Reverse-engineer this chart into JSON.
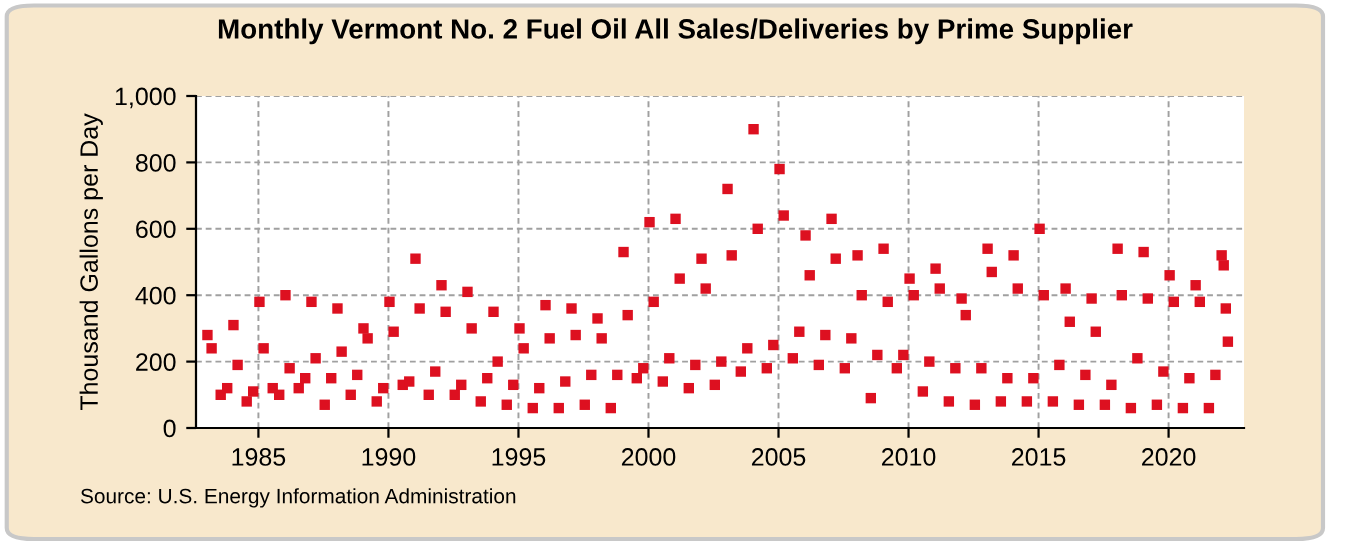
{
  "chart_data": {
    "type": "scatter",
    "title": "Monthly Vermont No. 2 Fuel Oil All Sales/Deliveries by Prime Supplier",
    "ylabel": "Thousand Gallons per Day",
    "annotations": [
      "Source: U.S. Energy Information Administration"
    ],
    "xlim": [
      1982.6,
      2022.9
    ],
    "xticks": [
      1985,
      1990,
      1995,
      2000,
      2005,
      2010,
      2015,
      2020
    ],
    "ylim": [
      0,
      1000
    ],
    "yticks": [
      0,
      200,
      400,
      600,
      800,
      {
        "value": 1000,
        "label": "1,000"
      }
    ],
    "grid": true,
    "marker": "square",
    "legend": false,
    "series": [
      {
        "color": "#dd1020",
        "x": [
          1983.04,
          1983.2,
          1983.55,
          1983.8,
          1984.04,
          1984.2,
          1984.55,
          1984.8,
          1985.04,
          1985.2,
          1985.55,
          1985.8,
          1986.04,
          1986.2,
          1986.55,
          1986.8,
          1987.04,
          1987.2,
          1987.55,
          1987.8,
          1988.04,
          1988.2,
          1988.55,
          1988.8,
          1989.04,
          1989.2,
          1989.55,
          1989.8,
          1990.04,
          1990.2,
          1990.55,
          1990.8,
          1991.04,
          1991.2,
          1991.55,
          1991.8,
          1992.04,
          1992.2,
          1992.55,
          1992.8,
          1993.04,
          1993.2,
          1993.55,
          1993.8,
          1994.04,
          1994.2,
          1994.55,
          1994.8,
          1995.04,
          1995.2,
          1995.55,
          1995.8,
          1996.04,
          1996.2,
          1996.55,
          1996.8,
          1997.04,
          1997.2,
          1997.55,
          1997.8,
          1998.04,
          1998.2,
          1998.55,
          1998.8,
          1999.04,
          1999.2,
          1999.55,
          1999.8,
          2000.04,
          2000.2,
          2000.55,
          2000.8,
          2001.04,
          2001.2,
          2001.55,
          2001.8,
          2002.04,
          2002.2,
          2002.55,
          2002.8,
          2003.04,
          2003.2,
          2003.55,
          2003.8,
          2004.04,
          2004.2,
          2004.55,
          2004.8,
          2005.04,
          2005.2,
          2005.55,
          2005.8,
          2006.04,
          2006.2,
          2006.55,
          2006.8,
          2007.04,
          2007.2,
          2007.55,
          2007.8,
          2008.04,
          2008.2,
          2008.55,
          2008.8,
          2009.04,
          2009.2,
          2009.55,
          2009.8,
          2010.04,
          2010.2,
          2010.55,
          2010.8,
          2011.04,
          2011.2,
          2011.55,
          2011.8,
          2012.04,
          2012.2,
          2012.55,
          2012.8,
          2013.04,
          2013.2,
          2013.55,
          2013.8,
          2014.04,
          2014.2,
          2014.55,
          2014.8,
          2015.04,
          2015.2,
          2015.55,
          2015.8,
          2016.04,
          2016.2,
          2016.55,
          2016.8,
          2017.04,
          2017.2,
          2017.55,
          2017.8,
          2018.04,
          2018.2,
          2018.55,
          2018.8,
          2019.04,
          2019.2,
          2019.55,
          2019.8,
          2020.04,
          2020.2,
          2020.55,
          2020.8,
          2021.04,
          2021.2,
          2021.55,
          2021.8,
          2022.04,
          2022.12,
          2022.2,
          2022.28
        ],
        "values": [
          280,
          240,
          100,
          120,
          310,
          190,
          80,
          110,
          380,
          240,
          120,
          100,
          400,
          180,
          120,
          150,
          380,
          210,
          70,
          150,
          360,
          230,
          100,
          160,
          300,
          270,
          80,
          120,
          380,
          290,
          130,
          140,
          510,
          360,
          100,
          170,
          430,
          350,
          100,
          130,
          410,
          300,
          80,
          150,
          350,
          200,
          70,
          130,
          300,
          240,
          60,
          120,
          370,
          270,
          60,
          140,
          360,
          280,
          70,
          160,
          330,
          270,
          60,
          160,
          530,
          340,
          150,
          180,
          620,
          380,
          140,
          210,
          630,
          450,
          120,
          190,
          510,
          420,
          130,
          200,
          720,
          520,
          170,
          240,
          900,
          600,
          180,
          250,
          780,
          640,
          210,
          290,
          580,
          460,
          190,
          280,
          630,
          510,
          180,
          270,
          520,
          400,
          90,
          220,
          540,
          380,
          180,
          220,
          450,
          400,
          110,
          200,
          480,
          420,
          80,
          180,
          390,
          340,
          70,
          180,
          540,
          470,
          80,
          150,
          520,
          420,
          80,
          150,
          600,
          400,
          80,
          190,
          420,
          320,
          70,
          160,
          390,
          290,
          70,
          130,
          540,
          400,
          60,
          210,
          530,
          390,
          70,
          170,
          460,
          380,
          60,
          150,
          430,
          380,
          60,
          160,
          520,
          490,
          360,
          260
        ]
      }
    ]
  }
}
